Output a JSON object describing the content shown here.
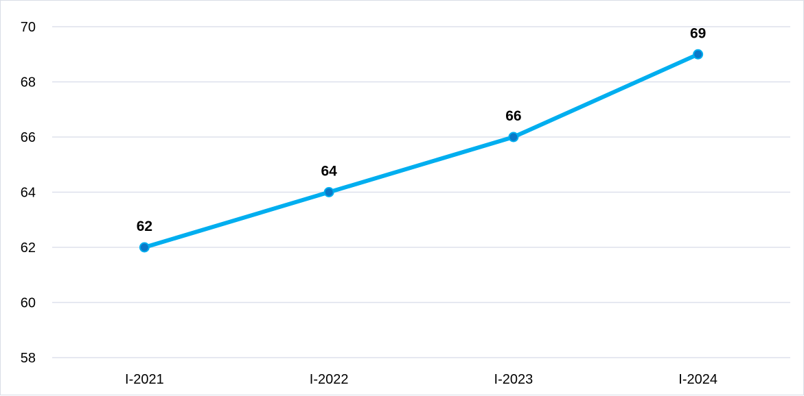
{
  "chart_data": {
    "type": "line",
    "title": "",
    "xlabel": "",
    "ylabel": "",
    "categories": [
      "I-2021",
      "I-2022",
      "I-2023",
      "I-2024"
    ],
    "series": [
      {
        "values": [
          62,
          64,
          66,
          69
        ],
        "color": "#00aeef",
        "marker_color": "#0a78c8"
      }
    ],
    "data_labels": [
      "62",
      "64",
      "66",
      "69"
    ],
    "ylim": [
      58,
      70
    ],
    "yticks": [
      "58",
      "60",
      "62",
      "64",
      "66",
      "68",
      "70"
    ],
    "grid": "horizontal",
    "legend": "none",
    "gridline_color": "#dde0ec"
  }
}
